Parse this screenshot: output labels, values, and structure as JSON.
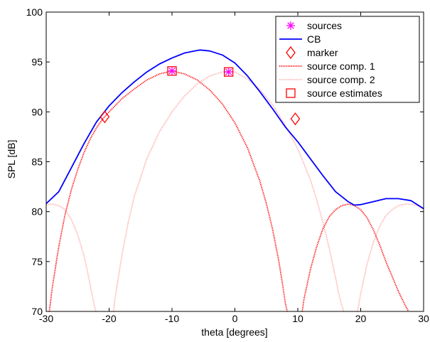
{
  "chart_data": {
    "type": "line",
    "title": "",
    "xlabel": "theta [degrees]",
    "ylabel": "SPL [dB]",
    "xlim": [
      -30,
      30
    ],
    "ylim": [
      70,
      100
    ],
    "xticks": [
      -30,
      -20,
      -10,
      0,
      10,
      20,
      30
    ],
    "yticks": [
      70,
      75,
      80,
      85,
      90,
      95,
      100
    ],
    "grid": false,
    "legend_position": "top-right",
    "series": [
      {
        "name": "sources",
        "kind": "marker",
        "marker": "asterisk",
        "color": "#ff00ff",
        "x": [
          -10,
          -1
        ],
        "y": [
          94.1,
          94.0
        ]
      },
      {
        "name": "CB",
        "kind": "line",
        "style": "solid",
        "color": "#0000ff",
        "x": [
          -30,
          -28,
          -26,
          -24,
          -22,
          -20,
          -18,
          -16,
          -14,
          -12,
          -10,
          -8,
          -6,
          -5.5,
          -4,
          -2,
          0,
          2,
          4,
          6,
          8,
          10,
          12,
          14,
          16,
          18,
          19,
          20,
          22,
          24,
          25,
          26,
          28,
          30
        ],
        "y": [
          80.8,
          82.0,
          84.4,
          86.8,
          89.0,
          90.6,
          91.9,
          93.0,
          94.0,
          94.8,
          95.4,
          95.9,
          96.15,
          96.2,
          96.1,
          95.7,
          94.9,
          93.6,
          92.0,
          90.3,
          88.5,
          87.0,
          85.3,
          83.6,
          82.0,
          81.0,
          80.65,
          80.7,
          81.0,
          81.3,
          81.3,
          81.3,
          81.1,
          80.3
        ]
      },
      {
        "name": "marker",
        "kind": "marker",
        "marker": "diamond",
        "color": "#ff0000",
        "x": [
          -20.7,
          9.6
        ],
        "y": [
          89.5,
          89.3
        ]
      },
      {
        "name": "source comp. 1",
        "kind": "line",
        "style": "dotted",
        "color": "#ff0000",
        "segments": [
          {
            "x": [
              -29.5,
              -29,
              -28,
              -27,
              -26,
              -25,
              -24,
              -23,
              -22,
              -21,
              -20,
              -18,
              -16,
              -14,
              -12,
              -10,
              -8,
              -6,
              -4,
              -2,
              0,
              2,
              4,
              5,
              6,
              7,
              7.6,
              8,
              8.3
            ],
            "y": [
              70,
              72.5,
              76.5,
              79.7,
              82.2,
              84.2,
              85.9,
              87.3,
              88.4,
              89.3,
              90.0,
              91.3,
              92.3,
              93.2,
              93.8,
              94.1,
              93.8,
              93.2,
              92.2,
              90.8,
              88.9,
              86.4,
              83.0,
              80.8,
              78.2,
              75.0,
              72.6,
              70.9,
              70
            ]
          },
          {
            "x": [
              10.7,
              11,
              12,
              13,
              14,
              15,
              16,
              17,
              18,
              18.5,
              19,
              20,
              21,
              22,
              23,
              24,
              25,
              26,
              27,
              27.6
            ],
            "y": [
              70,
              71.3,
              74.2,
              76.5,
              78.3,
              79.5,
              80.2,
              80.6,
              80.75,
              80.7,
              80.6,
              80.2,
              79.4,
              78.2,
              76.7,
              75.0,
              73.5,
              72.0,
              70.7,
              70
            ]
          }
        ]
      },
      {
        "name": "source comp. 2",
        "kind": "line",
        "style": "dotted",
        "color": "#ffaaaa",
        "segments": [
          {
            "x": [
              -30,
              -29,
              -28,
              -27,
              -26,
              -25,
              -24,
              -23.5,
              -23,
              -22.5,
              -22.1
            ],
            "y": [
              80.7,
              80.75,
              80.6,
              80.2,
              79.2,
              77.7,
              75.6,
              74.2,
              72.6,
              71.0,
              70
            ]
          },
          {
            "x": [
              -19.3,
              -19,
              -18,
              -17,
              -16,
              -14,
              -12,
              -10,
              -8,
              -6,
              -4,
              -2,
              -1,
              0,
              2,
              4,
              6,
              8,
              10,
              12,
              13,
              14,
              15,
              16,
              16.5,
              17,
              17.3
            ],
            "y": [
              70,
              71.5,
              75.5,
              78.8,
              81.5,
              85.3,
              88.0,
              90.0,
              91.6,
              92.8,
              93.6,
              94.0,
              94.05,
              94.0,
              93.3,
              92.2,
              90.7,
              88.7,
              86.3,
              83.2,
              81.2,
              78.9,
              76.3,
              73.4,
              71.8,
              70.6,
              70
            ]
          },
          {
            "x": [
              19.5,
              20,
              21,
              22,
              23,
              24,
              25,
              26,
              27,
              28,
              29,
              30
            ],
            "y": [
              70,
              71.8,
              74.7,
              76.9,
              78.5,
              79.6,
              80.2,
              80.6,
              80.75,
              80.75,
              80.6,
              80.3
            ]
          }
        ]
      },
      {
        "name": "source estimates",
        "kind": "marker",
        "marker": "square",
        "color": "#ff0000",
        "x": [
          -10,
          -1
        ],
        "y": [
          94.1,
          94.0
        ]
      }
    ]
  }
}
